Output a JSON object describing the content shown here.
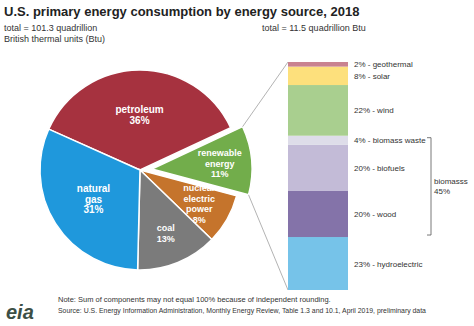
{
  "chart_data": [
    {
      "type": "pie",
      "title": "U.S. primary energy consumption by energy source, 2018",
      "subtitle": [
        "total = 101.3 quadrillion",
        "British thermal units (Btu)"
      ],
      "categories": [
        "petroleum",
        "renewable energy",
        "nuclear electric power",
        "coal",
        "natural gas"
      ],
      "values": [
        36,
        11,
        8,
        13,
        31
      ],
      "value_labels": [
        "36%",
        "11%",
        "8%",
        "13%",
        "31%"
      ],
      "colors": [
        "#a6323f",
        "#72ad4b",
        "#c5742c",
        "#7b7b7b",
        "#1f98dc"
      ],
      "data_labels": true
    },
    {
      "type": "bar",
      "stacked": true,
      "breakdown_of": 1,
      "subtitle": "total = 11.5 quadrillion Btu",
      "categories": [
        "23% - hydroelectric",
        "20% - wood",
        "20% - biofuels",
        "4% - biomass waste",
        "22% - wind",
        "8% - solar",
        "2% - geothermal"
      ],
      "values": [
        23,
        20,
        20,
        4,
        22,
        8,
        2
      ],
      "colors": [
        "#76c3e9",
        "#8473a9",
        "#c3bbd7",
        "#dedde9",
        "#a9cf8f",
        "#fde07c",
        "#c98290"
      ],
      "data_labels": false,
      "groups": [
        {
          "name": "biomasss",
          "value": 45,
          "value_label": "45%",
          "members": [
            1,
            2,
            3
          ]
        }
      ]
    }
  ],
  "footer": {
    "note": "Note: Sum of components may not equal 100% because of independent rounding.",
    "source": "Source: U.S. Energy Information Administration, Monthly Energy Review, Table 1.3 and 10.1, April 2019, preliminary data",
    "logo": "eia"
  }
}
